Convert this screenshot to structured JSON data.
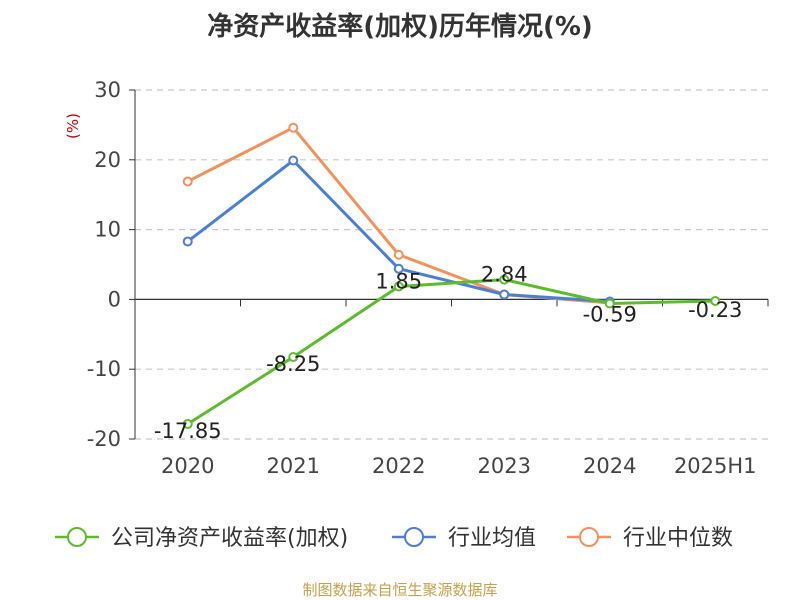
{
  "chart_data": {
    "type": "line",
    "title": "净资产收益率(加权)历年情况(%)",
    "ylabel": "(%)",
    "xlabel": "",
    "categories": [
      "2020",
      "2021",
      "2022",
      "2023",
      "2024",
      "2025H1"
    ],
    "yticks": [
      30,
      20,
      10,
      0,
      -10,
      -20
    ],
    "ylim": [
      -20,
      30
    ],
    "grid": true,
    "legend_position": "bottom",
    "series": [
      {
        "name": "公司净资产收益率(加权)",
        "color": "#5cbd2c",
        "values": [
          -17.85,
          -8.25,
          1.85,
          2.84,
          -0.59,
          -0.23
        ],
        "labels": [
          "-17.85",
          "-8.25",
          "1.85",
          "2.84",
          "-0.59",
          "-0.23"
        ]
      },
      {
        "name": "行业均值",
        "color": "#4a7fd6",
        "values": [
          8.3,
          19.9,
          4.4,
          0.7,
          -0.3,
          null
        ]
      },
      {
        "name": "行业中位数",
        "color": "#f5915a",
        "values": [
          16.9,
          24.6,
          6.4,
          0.7,
          -0.5,
          null
        ]
      }
    ]
  },
  "source": "制图数据来自恒生聚源数据库"
}
